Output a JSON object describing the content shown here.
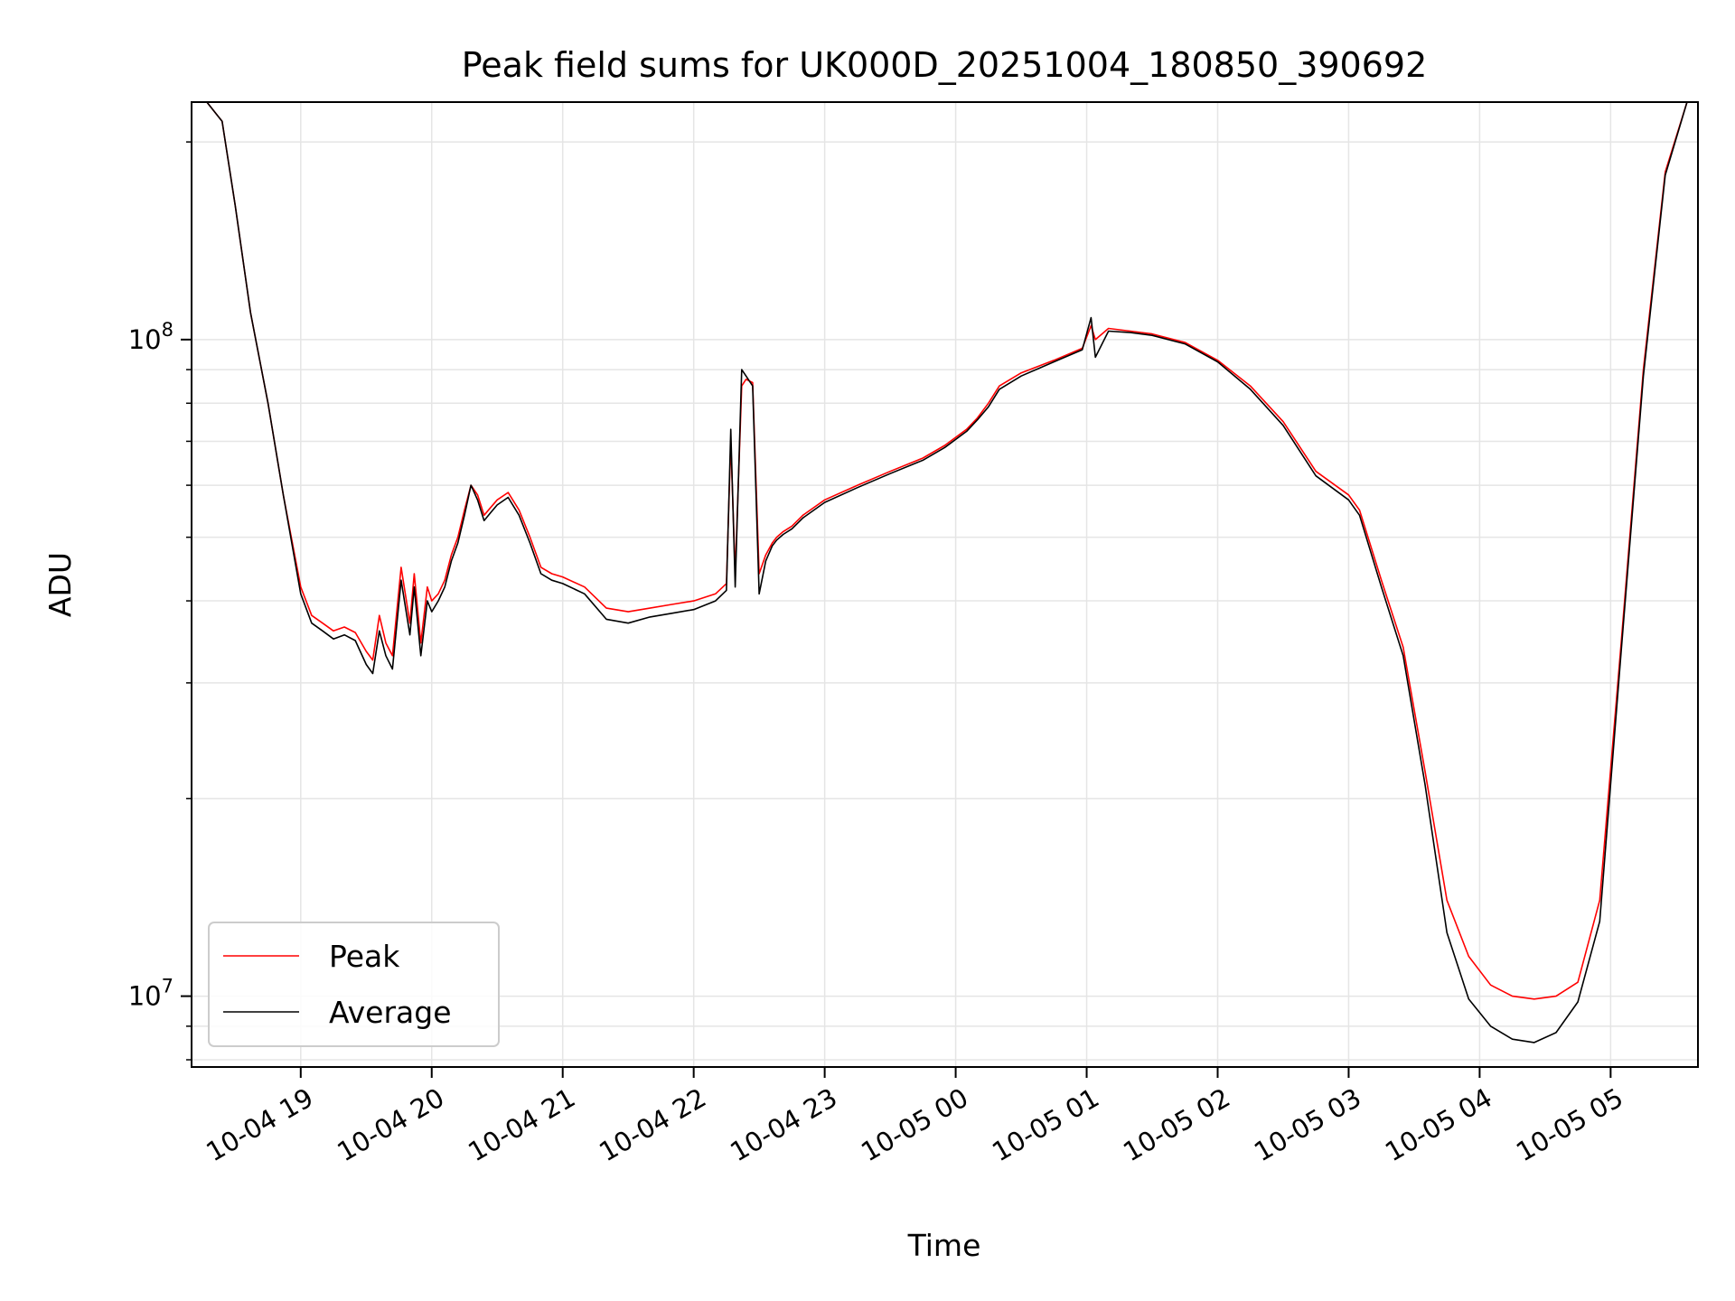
{
  "chart_data": {
    "type": "line",
    "title": "Peak field sums for UK000D_20251004_180850_390692",
    "xlabel": "Time",
    "ylabel": "ADU",
    "yscale": "log",
    "grid": true,
    "legend_position": "lower-left",
    "xlim": [
      "2025-10-04 18:10",
      "2025-10-05 05:40"
    ],
    "ylim": [
      7800000,
      230000000
    ],
    "x_ticks": [
      {
        "value": "2025-10-04 19:00",
        "label": "10-04 19"
      },
      {
        "value": "2025-10-04 20:00",
        "label": "10-04 20"
      },
      {
        "value": "2025-10-04 21:00",
        "label": "10-04 21"
      },
      {
        "value": "2025-10-04 22:00",
        "label": "10-04 22"
      },
      {
        "value": "2025-10-04 23:00",
        "label": "10-04 23"
      },
      {
        "value": "2025-10-05 00:00",
        "label": "10-05 00"
      },
      {
        "value": "2025-10-05 01:00",
        "label": "10-05 01"
      },
      {
        "value": "2025-10-05 02:00",
        "label": "10-05 02"
      },
      {
        "value": "2025-10-05 03:00",
        "label": "10-05 03"
      },
      {
        "value": "2025-10-05 04:00",
        "label": "10-05 04"
      },
      {
        "value": "2025-10-05 05:00",
        "label": "10-05 05"
      }
    ],
    "y_ticks": [
      {
        "value": 10000000,
        "base": "10",
        "exp": "7"
      },
      {
        "value": 100000000,
        "base": "10",
        "exp": "8"
      }
    ],
    "series": [
      {
        "name": "Peak",
        "color": "#ff0000",
        "x": [
          "2025-10-04 18:10",
          "2025-10-04 18:17",
          "2025-10-04 18:24",
          "2025-10-04 18:30",
          "2025-10-04 18:37",
          "2025-10-04 18:45",
          "2025-10-04 18:52",
          "2025-10-04 19:00",
          "2025-10-04 19:05",
          "2025-10-04 19:10",
          "2025-10-04 19:15",
          "2025-10-04 19:20",
          "2025-10-04 19:25",
          "2025-10-04 19:30",
          "2025-10-04 19:33",
          "2025-10-04 19:36",
          "2025-10-04 19:39",
          "2025-10-04 19:42",
          "2025-10-04 19:46",
          "2025-10-04 19:50",
          "2025-10-04 19:52",
          "2025-10-04 19:55",
          "2025-10-04 19:58",
          "2025-10-04 20:00",
          "2025-10-04 20:03",
          "2025-10-04 20:06",
          "2025-10-04 20:09",
          "2025-10-04 20:12",
          "2025-10-04 20:15",
          "2025-10-04 20:18",
          "2025-10-04 20:21",
          "2025-10-04 20:24",
          "2025-10-04 20:27",
          "2025-10-04 20:30",
          "2025-10-04 20:35",
          "2025-10-04 20:40",
          "2025-10-04 20:45",
          "2025-10-04 20:50",
          "2025-10-04 20:55",
          "2025-10-04 21:00",
          "2025-10-04 21:10",
          "2025-10-04 21:20",
          "2025-10-04 21:30",
          "2025-10-04 21:40",
          "2025-10-04 21:50",
          "2025-10-04 22:00",
          "2025-10-04 22:10",
          "2025-10-04 22:15",
          "2025-10-04 22:17",
          "2025-10-04 22:19",
          "2025-10-04 22:22",
          "2025-10-04 22:24",
          "2025-10-04 22:27",
          "2025-10-04 22:30",
          "2025-10-04 22:33",
          "2025-10-04 22:36",
          "2025-10-04 22:38",
          "2025-10-04 22:41",
          "2025-10-04 22:45",
          "2025-10-04 22:50",
          "2025-10-04 23:00",
          "2025-10-04 23:15",
          "2025-10-04 23:30",
          "2025-10-04 23:45",
          "2025-10-04 23:55",
          "2025-10-05 00:05",
          "2025-10-05 00:10",
          "2025-10-05 00:15",
          "2025-10-05 00:20",
          "2025-10-05 00:30",
          "2025-10-05 00:45",
          "2025-10-05 00:58",
          "2025-10-05 01:02",
          "2025-10-05 01:04",
          "2025-10-05 01:10",
          "2025-10-05 01:20",
          "2025-10-05 01:30",
          "2025-10-05 01:45",
          "2025-10-05 02:00",
          "2025-10-05 02:15",
          "2025-10-05 02:30",
          "2025-10-05 02:45",
          "2025-10-05 03:00",
          "2025-10-05 03:05",
          "2025-10-05 03:15",
          "2025-10-05 03:25",
          "2025-10-05 03:35",
          "2025-10-05 03:45",
          "2025-10-05 03:55",
          "2025-10-05 04:05",
          "2025-10-05 04:15",
          "2025-10-05 04:25",
          "2025-10-05 04:35",
          "2025-10-05 04:45",
          "2025-10-05 04:55",
          "2025-10-05 05:05",
          "2025-10-05 05:15",
          "2025-10-05 05:25",
          "2025-10-05 05:35"
        ],
        "y": [
          230000000,
          230000000,
          215000000,
          160000000,
          110000000,
          80000000,
          58000000,
          42000000,
          38000000,
          37000000,
          36000000,
          36500000,
          35800000,
          33500000,
          32500000,
          38000000,
          34500000,
          33000000,
          45000000,
          37000000,
          44000000,
          34500000,
          42000000,
          40000000,
          41000000,
          43000000,
          47000000,
          50000000,
          55000000,
          60000000,
          58000000,
          54000000,
          55500000,
          57000000,
          58500000,
          55000000,
          50000000,
          45000000,
          44000000,
          43500000,
          42000000,
          39000000,
          38500000,
          39000000,
          39500000,
          40000000,
          41000000,
          42500000,
          70000000,
          44000000,
          85000000,
          87000000,
          86000000,
          44000000,
          47000000,
          49000000,
          50000000,
          51000000,
          52000000,
          54000000,
          57000000,
          60000000,
          63000000,
          66000000,
          69000000,
          73000000,
          76000000,
          80000000,
          85000000,
          89000000,
          93000000,
          97000000,
          105000000,
          100000000,
          104000000,
          103000000,
          102000000,
          99000000,
          93000000,
          85000000,
          75000000,
          63000000,
          58000000,
          55000000,
          43000000,
          34000000,
          22000000,
          14000000,
          11500000,
          10400000,
          10000000,
          9900000,
          10000000,
          10500000,
          14000000,
          35000000,
          90000000,
          180000000,
          230000000
        ]
      },
      {
        "name": "Average",
        "color": "#000000",
        "x": [
          "2025-10-04 18:10",
          "2025-10-04 18:17",
          "2025-10-04 18:24",
          "2025-10-04 18:30",
          "2025-10-04 18:37",
          "2025-10-04 18:45",
          "2025-10-04 18:52",
          "2025-10-04 19:00",
          "2025-10-04 19:05",
          "2025-10-04 19:10",
          "2025-10-04 19:15",
          "2025-10-04 19:20",
          "2025-10-04 19:25",
          "2025-10-04 19:30",
          "2025-10-04 19:33",
          "2025-10-04 19:36",
          "2025-10-04 19:39",
          "2025-10-04 19:42",
          "2025-10-04 19:46",
          "2025-10-04 19:50",
          "2025-10-04 19:52",
          "2025-10-04 19:55",
          "2025-10-04 19:58",
          "2025-10-04 20:00",
          "2025-10-04 20:03",
          "2025-10-04 20:06",
          "2025-10-04 20:09",
          "2025-10-04 20:12",
          "2025-10-04 20:15",
          "2025-10-04 20:18",
          "2025-10-04 20:21",
          "2025-10-04 20:24",
          "2025-10-04 20:27",
          "2025-10-04 20:30",
          "2025-10-04 20:35",
          "2025-10-04 20:40",
          "2025-10-04 20:45",
          "2025-10-04 20:50",
          "2025-10-04 20:55",
          "2025-10-04 21:00",
          "2025-10-04 21:10",
          "2025-10-04 21:20",
          "2025-10-04 21:30",
          "2025-10-04 21:40",
          "2025-10-04 21:50",
          "2025-10-04 22:00",
          "2025-10-04 22:10",
          "2025-10-04 22:15",
          "2025-10-04 22:17",
          "2025-10-04 22:19",
          "2025-10-04 22:22",
          "2025-10-04 22:24",
          "2025-10-04 22:27",
          "2025-10-04 22:30",
          "2025-10-04 22:33",
          "2025-10-04 22:36",
          "2025-10-04 22:38",
          "2025-10-04 22:41",
          "2025-10-04 22:45",
          "2025-10-04 22:50",
          "2025-10-04 23:00",
          "2025-10-04 23:15",
          "2025-10-04 23:30",
          "2025-10-04 23:45",
          "2025-10-04 23:55",
          "2025-10-05 00:05",
          "2025-10-05 00:10",
          "2025-10-05 00:15",
          "2025-10-05 00:20",
          "2025-10-05 00:30",
          "2025-10-05 00:45",
          "2025-10-05 00:58",
          "2025-10-05 01:02",
          "2025-10-05 01:04",
          "2025-10-05 01:10",
          "2025-10-05 01:20",
          "2025-10-05 01:30",
          "2025-10-05 01:45",
          "2025-10-05 02:00",
          "2025-10-05 02:15",
          "2025-10-05 02:30",
          "2025-10-05 02:45",
          "2025-10-05 03:00",
          "2025-10-05 03:05",
          "2025-10-05 03:15",
          "2025-10-05 03:25",
          "2025-10-05 03:35",
          "2025-10-05 03:45",
          "2025-10-05 03:55",
          "2025-10-05 04:05",
          "2025-10-05 04:15",
          "2025-10-05 04:25",
          "2025-10-05 04:35",
          "2025-10-05 04:45",
          "2025-10-05 04:55",
          "2025-10-05 05:05",
          "2025-10-05 05:15",
          "2025-10-05 05:25",
          "2025-10-05 05:35"
        ],
        "y": [
          230000000,
          230000000,
          215000000,
          160000000,
          110000000,
          80000000,
          58000000,
          41000000,
          37000000,
          36000000,
          35000000,
          35500000,
          34800000,
          32000000,
          31000000,
          36000000,
          33000000,
          31500000,
          43000000,
          35500000,
          42000000,
          33000000,
          40000000,
          38500000,
          40000000,
          42000000,
          46000000,
          49000000,
          54000000,
          60000000,
          57000000,
          53000000,
          54500000,
          56000000,
          57500000,
          54000000,
          49000000,
          44000000,
          43000000,
          42500000,
          41000000,
          37500000,
          37000000,
          37800000,
          38300000,
          38800000,
          40000000,
          41500000,
          73000000,
          42000000,
          90000000,
          88000000,
          85000000,
          41000000,
          46000000,
          48500000,
          49500000,
          50500000,
          51500000,
          53500000,
          56500000,
          59500000,
          62500000,
          65500000,
          68500000,
          72500000,
          75500000,
          79000000,
          84000000,
          88000000,
          92500000,
          96500000,
          108000000,
          94000000,
          103000000,
          102500000,
          101500000,
          98500000,
          92500000,
          84000000,
          74000000,
          62000000,
          57000000,
          54000000,
          42000000,
          33000000,
          21000000,
          12500000,
          9900000,
          9000000,
          8600000,
          8500000,
          8800000,
          9800000,
          13000000,
          34000000,
          88000000,
          178000000,
          230000000
        ]
      }
    ]
  }
}
